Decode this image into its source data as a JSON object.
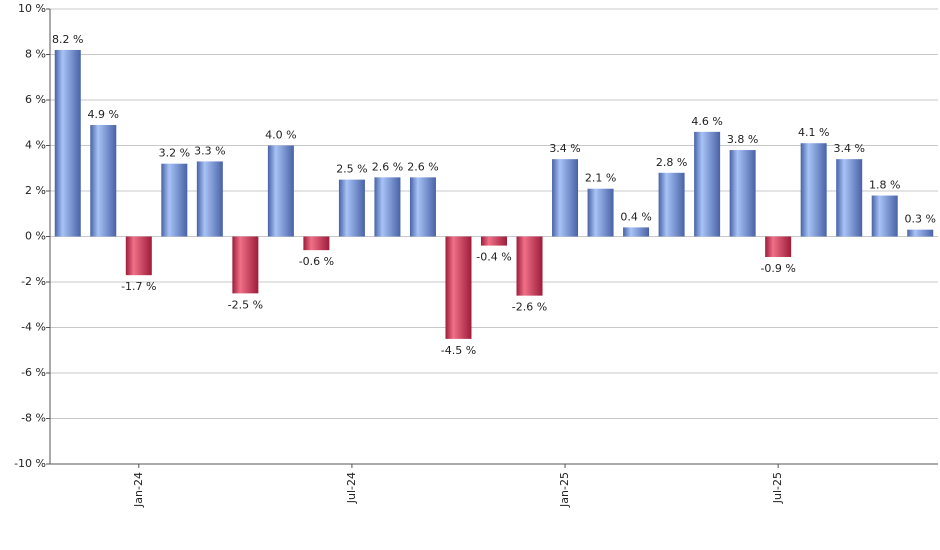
{
  "chart_data": {
    "type": "bar",
    "categories": [
      null,
      null,
      "Jan-24",
      null,
      null,
      null,
      null,
      null,
      "Jul-24",
      null,
      null,
      null,
      null,
      null,
      "Jan-25",
      null,
      null,
      null,
      null,
      null,
      "Jul-25",
      null,
      null,
      null,
      null
    ],
    "values": [
      8.2,
      4.9,
      -1.7,
      3.2,
      3.3,
      -2.5,
      4.0,
      -0.6,
      2.5,
      2.6,
      2.6,
      -4.5,
      -0.4,
      -2.6,
      3.4,
      2.1,
      0.4,
      2.8,
      4.6,
      3.8,
      -0.9,
      4.1,
      3.4,
      1.8,
      0.3
    ],
    "value_labels": [
      "8.2 %",
      "4.9 %",
      "-1.7 %",
      "3.2 %",
      "3.3 %",
      "-2.5 %",
      "4.0 %",
      "-0.6 %",
      "2.5 %",
      "2.6 %",
      "2.6 %",
      "-4.5 %",
      "-0.4 %",
      "-2.6 %",
      "3.4 %",
      "2.1 %",
      "0.4 %",
      "2.8 %",
      "4.6 %",
      "3.8 %",
      "-0.9 %",
      "4.1 %",
      "3.4 %",
      "1.8 %",
      "0.3 %"
    ],
    "colors": {
      "positive": [
        "#4862a6",
        "#a8c3f6"
      ],
      "negative": [
        "#9c1c3a",
        "#f07088"
      ]
    },
    "ylim": [
      -10,
      10
    ],
    "yticks": [
      {
        "value": -10,
        "label": "-10 %"
      },
      {
        "value": -8,
        "label": "-8 %"
      },
      {
        "value": -6,
        "label": "-6 %"
      },
      {
        "value": -4,
        "label": "-4 %"
      },
      {
        "value": -2,
        "label": "-2 %"
      },
      {
        "value": 0,
        "label": "0 %"
      },
      {
        "value": 2,
        "label": "2 %"
      },
      {
        "value": 4,
        "label": "4 %"
      },
      {
        "value": 6,
        "label": "6 %"
      },
      {
        "value": 8,
        "label": "8 %"
      },
      {
        "value": 10,
        "label": "10 %"
      }
    ],
    "grid": true
  }
}
